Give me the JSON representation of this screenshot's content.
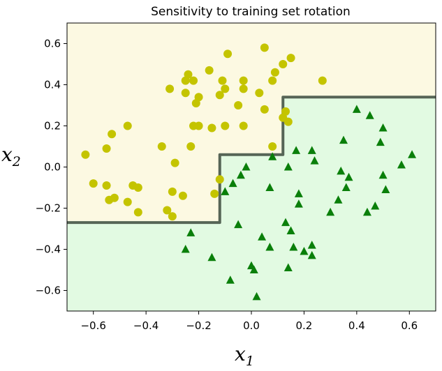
{
  "chart_data": {
    "type": "scatter",
    "title": "Sensitivity to training set rotation",
    "xlabel": "x",
    "xlabel_sub": "1",
    "ylabel": "x",
    "ylabel_sub": "2",
    "xlim": [
      -0.7,
      0.7
    ],
    "ylim": [
      -0.7,
      0.7
    ],
    "xticks": [
      -0.6,
      -0.4,
      -0.2,
      0.0,
      0.2,
      0.4,
      0.6
    ],
    "yticks": [
      -0.6,
      -0.4,
      -0.2,
      0.0,
      0.2,
      0.4,
      0.6
    ],
    "xtick_labels": [
      "−0.6",
      "−0.4",
      "−0.2",
      "0.0",
      "0.2",
      "0.4",
      "0.6"
    ],
    "ytick_labels": [
      "−0.6",
      "−0.4",
      "−0.2",
      "0.0",
      "0.2",
      "0.4",
      "0.6"
    ],
    "grid": false,
    "colors": {
      "region_class0": "#fcf9e2",
      "region_class1": "#e2fae2",
      "class0_marker": "#c4c400",
      "class1_marker": "#0a7f0a",
      "boundary": "#566556"
    },
    "decision_boundary": {
      "x": [
        -0.7,
        -0.12,
        -0.12,
        0.12,
        0.12,
        0.7
      ],
      "y": [
        -0.27,
        -0.27,
        0.06,
        0.06,
        0.34,
        0.34
      ]
    },
    "series": [
      {
        "marker": "circle",
        "points": [
          [
            -0.63,
            0.06
          ],
          [
            -0.6,
            -0.08
          ],
          [
            -0.55,
            0.09
          ],
          [
            -0.53,
            0.16
          ],
          [
            -0.52,
            -0.15
          ],
          [
            -0.54,
            -0.16
          ],
          [
            -0.55,
            -0.09
          ],
          [
            -0.47,
            0.2
          ],
          [
            -0.47,
            -0.17
          ],
          [
            -0.45,
            -0.09
          ],
          [
            -0.43,
            -0.1
          ],
          [
            -0.43,
            -0.22
          ],
          [
            -0.34,
            0.1
          ],
          [
            -0.32,
            -0.21
          ],
          [
            -0.3,
            -0.12
          ],
          [
            -0.3,
            -0.24
          ],
          [
            -0.29,
            0.02
          ],
          [
            -0.31,
            0.38
          ],
          [
            -0.26,
            -0.14
          ],
          [
            -0.25,
            0.36
          ],
          [
            -0.25,
            0.42
          ],
          [
            -0.24,
            0.45
          ],
          [
            -0.23,
            0.1
          ],
          [
            -0.22,
            0.42
          ],
          [
            -0.22,
            0.2
          ],
          [
            -0.2,
            0.2
          ],
          [
            -0.21,
            0.31
          ],
          [
            -0.2,
            0.34
          ],
          [
            -0.16,
            0.47
          ],
          [
            -0.15,
            0.19
          ],
          [
            -0.14,
            -0.13
          ],
          [
            -0.12,
            0.35
          ],
          [
            -0.11,
            0.42
          ],
          [
            -0.1,
            0.38
          ],
          [
            -0.1,
            0.2
          ],
          [
            -0.12,
            -0.06
          ],
          [
            -0.09,
            0.55
          ],
          [
            -0.05,
            0.3
          ],
          [
            -0.03,
            0.38
          ],
          [
            -0.03,
            0.42
          ],
          [
            -0.03,
            0.2
          ],
          [
            0.03,
            0.36
          ],
          [
            0.05,
            0.58
          ],
          [
            0.05,
            0.28
          ],
          [
            0.08,
            0.1
          ],
          [
            0.08,
            0.42
          ],
          [
            0.09,
            0.46
          ],
          [
            0.12,
            0.5
          ],
          [
            0.12,
            0.24
          ],
          [
            0.13,
            0.27
          ],
          [
            0.14,
            0.22
          ],
          [
            0.15,
            0.53
          ],
          [
            0.27,
            0.42
          ]
        ]
      },
      {
        "marker": "triangle",
        "points": [
          [
            -0.25,
            -0.4
          ],
          [
            -0.23,
            -0.32
          ],
          [
            -0.15,
            -0.44
          ],
          [
            -0.1,
            -0.12
          ],
          [
            -0.08,
            -0.55
          ],
          [
            -0.07,
            -0.08
          ],
          [
            -0.05,
            -0.28
          ],
          [
            -0.04,
            -0.04
          ],
          [
            -0.02,
            0.0
          ],
          [
            0.0,
            -0.48
          ],
          [
            0.01,
            -0.5
          ],
          [
            0.02,
            -0.63
          ],
          [
            0.04,
            -0.34
          ],
          [
            0.07,
            -0.39
          ],
          [
            0.07,
            -0.1
          ],
          [
            0.08,
            0.05
          ],
          [
            0.13,
            -0.27
          ],
          [
            0.14,
            -0.49
          ],
          [
            0.15,
            -0.31
          ],
          [
            0.14,
            0.0
          ],
          [
            0.16,
            -0.39
          ],
          [
            0.17,
            0.08
          ],
          [
            0.18,
            -0.18
          ],
          [
            0.18,
            -0.13
          ],
          [
            0.2,
            -0.41
          ],
          [
            0.23,
            -0.38
          ],
          [
            0.23,
            -0.43
          ],
          [
            0.23,
            0.08
          ],
          [
            0.24,
            0.03
          ],
          [
            0.3,
            -0.22
          ],
          [
            0.33,
            -0.16
          ],
          [
            0.34,
            -0.02
          ],
          [
            0.35,
            0.13
          ],
          [
            0.36,
            -0.1
          ],
          [
            0.37,
            -0.05
          ],
          [
            0.4,
            0.28
          ],
          [
            0.44,
            -0.22
          ],
          [
            0.45,
            0.25
          ],
          [
            0.47,
            -0.19
          ],
          [
            0.49,
            0.12
          ],
          [
            0.5,
            -0.04
          ],
          [
            0.5,
            0.19
          ],
          [
            0.51,
            -0.11
          ],
          [
            0.57,
            0.01
          ],
          [
            0.61,
            0.06
          ]
        ]
      }
    ]
  }
}
